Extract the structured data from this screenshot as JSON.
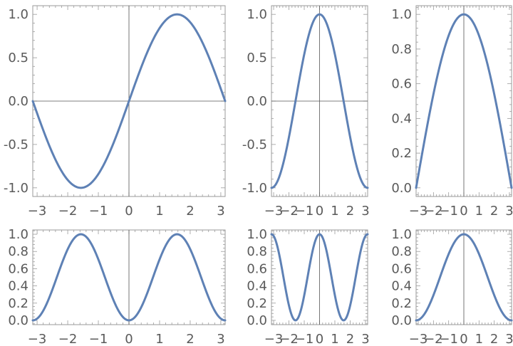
{
  "colors": {
    "curve": "#5e81b5",
    "frame": "#9a9a9a",
    "axis": "#555555",
    "text": "#5a5a5a"
  },
  "chart_data": [
    {
      "type": "line",
      "function": "sin(x)",
      "xlim": [
        -3.14159,
        3.14159
      ],
      "ylim": [
        -1.1,
        1.1
      ],
      "xticks": [
        -3,
        -2,
        -1,
        0,
        1,
        2,
        3
      ],
      "xtick_labels": [
        "−3",
        "−2",
        "−1",
        "0",
        "1",
        "2",
        "3"
      ],
      "yticks": [
        -1.0,
        -0.5,
        0.0,
        0.5,
        1.0
      ],
      "ytick_labels": [
        "-1.0",
        "-0.5",
        "0.0",
        "0.5",
        "1.0"
      ],
      "axis_lines": {
        "x": true,
        "y": true
      },
      "grid": false
    },
    {
      "type": "line",
      "function": "cos(x)",
      "xlim": [
        -3.14159,
        3.14159
      ],
      "ylim": [
        -1.1,
        1.1
      ],
      "xticks": [
        -3,
        -2,
        -1,
        0,
        1,
        2,
        3
      ],
      "xtick_labels": [
        "−3",
        "−2",
        "−1",
        "0",
        "1",
        "2",
        "3"
      ],
      "yticks": [
        -1.0,
        -0.5,
        0.0,
        0.5,
        1.0
      ],
      "ytick_labels": [
        "-1.0",
        "-0.5",
        "0.0",
        "0.5",
        "1.0"
      ],
      "axis_lines": {
        "x": true,
        "y": true
      },
      "grid": false
    },
    {
      "type": "line",
      "function": "cos(x/2)",
      "xlim": [
        -3.14159,
        3.14159
      ],
      "ylim": [
        -0.05,
        1.05
      ],
      "xticks": [
        -3,
        -2,
        -1,
        0,
        1,
        2,
        3
      ],
      "xtick_labels": [
        "−3",
        "−2",
        "−1",
        "0",
        "1",
        "2",
        "3"
      ],
      "yticks": [
        0.0,
        0.2,
        0.4,
        0.6,
        0.8,
        1.0
      ],
      "ytick_labels": [
        "0.0",
        "0.2",
        "0.4",
        "0.6",
        "0.8",
        "1.0"
      ],
      "axis_lines": {
        "x": false,
        "y": true
      },
      "grid": false
    },
    {
      "type": "line",
      "function": "sin(x)^2",
      "xlim": [
        -3.14159,
        3.14159
      ],
      "ylim": [
        -0.05,
        1.05
      ],
      "xticks": [
        -3,
        -2,
        -1,
        0,
        1,
        2,
        3
      ],
      "xtick_labels": [
        "−3",
        "−2",
        "−1",
        "0",
        "1",
        "2",
        "3"
      ],
      "yticks": [
        0.0,
        0.2,
        0.4,
        0.6,
        0.8,
        1.0
      ],
      "ytick_labels": [
        "0.0",
        "0.2",
        "0.4",
        "0.6",
        "0.8",
        "1.0"
      ],
      "axis_lines": {
        "x": false,
        "y": true
      },
      "grid": false
    },
    {
      "type": "line",
      "function": "cos(x)^2",
      "xlim": [
        -3.14159,
        3.14159
      ],
      "ylim": [
        -0.05,
        1.05
      ],
      "xticks": [
        -3,
        -2,
        -1,
        0,
        1,
        2,
        3
      ],
      "xtick_labels": [
        "−3",
        "−2",
        "−1",
        "0",
        "1",
        "2",
        "3"
      ],
      "yticks": [
        0.0,
        0.2,
        0.4,
        0.6,
        0.8,
        1.0
      ],
      "ytick_labels": [
        "0.0",
        "0.2",
        "0.4",
        "0.6",
        "0.8",
        "1.0"
      ],
      "axis_lines": {
        "x": false,
        "y": true
      },
      "grid": false
    },
    {
      "type": "line",
      "function": "cos(x/2)^2",
      "xlim": [
        -3.14159,
        3.14159
      ],
      "ylim": [
        -0.05,
        1.05
      ],
      "xticks": [
        -3,
        -2,
        -1,
        0,
        1,
        2,
        3
      ],
      "xtick_labels": [
        "−3",
        "−2",
        "−1",
        "0",
        "1",
        "2",
        "3"
      ],
      "yticks": [
        0.0,
        0.2,
        0.4,
        0.6,
        0.8,
        1.0
      ],
      "ytick_labels": [
        "0.0",
        "0.2",
        "0.4",
        "0.6",
        "0.8",
        "1.0"
      ],
      "axis_lines": {
        "x": false,
        "y": true
      },
      "grid": false
    }
  ]
}
